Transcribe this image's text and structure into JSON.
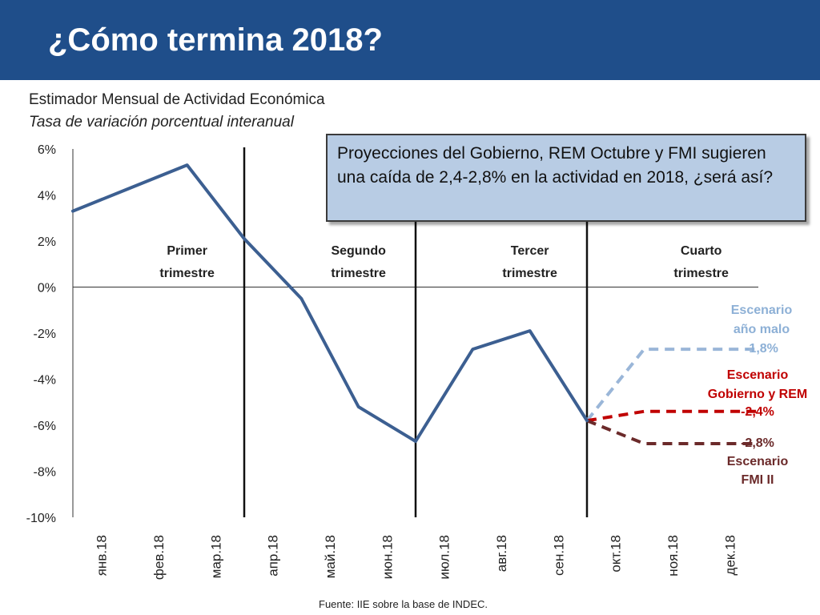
{
  "header": {
    "title": "¿Cómo termina 2018?"
  },
  "subtitle": {
    "line1": "Estimador Mensual de Actividad Económica",
    "line2": "Tasa de variación porcentual interanual"
  },
  "callout": {
    "text": "Proyecciones del Gobierno, REM Octubre y FMI sugieren una caída de 2,4-2,8% en la actividad en 2018, ¿será así?"
  },
  "source": "Fuente: IIE sobre la base de INDEC.",
  "colors": {
    "header_bg": "#1f4e8a",
    "main_line": "#3c5f91",
    "scenario_bad_year": "#9ab6d8",
    "scenario_gobierno_rem": "#c00000",
    "scenario_fmi": "#6b2a2a",
    "callout_bg": "#b8cce4"
  },
  "chart_data": {
    "type": "line",
    "categories": [
      "янв.18",
      "фев.18",
      "мар.18",
      "апр.18",
      "май.18",
      "июн.18",
      "юл.18",
      "авг.18",
      "сен.18",
      "окт.18",
      "ноя.18",
      "дек.18"
    ],
    "x_tick_labels": [
      "янв.18",
      "фев.18",
      "мар.18",
      "апр.18",
      "май.18",
      "июн.18",
      "июл.18",
      "авг.18",
      "сен.18",
      "окт.18",
      "ноя.18",
      "дек.18"
    ],
    "y_tick_labels": [
      "6%",
      "4%",
      "2%",
      "0%",
      "-2%",
      "-4%",
      "-6%",
      "-8%",
      "-10%"
    ],
    "ylim": [
      -10,
      6
    ],
    "grid": false,
    "series": [
      {
        "key": "actual",
        "style": "solid",
        "points": [
          {
            "x": -0.5,
            "y": 3.3
          },
          {
            "x": 0.5,
            "y": 4.3
          },
          {
            "x": 1.5,
            "y": 5.3
          },
          {
            "x": 2.5,
            "y": 2.1
          },
          {
            "x": 3.5,
            "y": -0.5
          },
          {
            "x": 4.5,
            "y": -5.2
          },
          {
            "x": 5.5,
            "y": -6.7
          },
          {
            "x": 6.5,
            "y": -2.7
          },
          {
            "x": 7.5,
            "y": -1.9
          },
          {
            "x": 8.5,
            "y": -5.8
          }
        ]
      },
      {
        "key": "bad_year",
        "style": "dashed",
        "points": [
          {
            "x": 8.5,
            "y": -5.8
          },
          {
            "x": 9.5,
            "y": -2.7
          },
          {
            "x": 11.5,
            "y": -2.7
          }
        ]
      },
      {
        "key": "gobierno_rem",
        "style": "dashed",
        "points": [
          {
            "x": 8.5,
            "y": -5.8
          },
          {
            "x": 9.5,
            "y": -5.4
          },
          {
            "x": 11.5,
            "y": -5.4
          }
        ]
      },
      {
        "key": "fmi",
        "style": "dashed",
        "points": [
          {
            "x": 8.5,
            "y": -5.8
          },
          {
            "x": 9.5,
            "y": -6.8
          },
          {
            "x": 11.5,
            "y": -6.8
          }
        ]
      }
    ],
    "quarter_dividers_x": [
      3,
      6,
      9
    ],
    "quarter_labels": [
      {
        "line1": "Primer",
        "line2": "trimestre",
        "x": 1.5
      },
      {
        "line1": "Segundo",
        "line2": "trimestre",
        "x": 4.5
      },
      {
        "line1": "Tercer",
        "line2": "trimestre",
        "x": 7.5
      },
      {
        "line1": "Cuarto",
        "line2": "trimestre",
        "x": 10.5
      }
    ],
    "scenario_labels": [
      {
        "key": "bad_year",
        "lines": [
          "Escenario",
          "año malo",
          "-1,8%"
        ]
      },
      {
        "key": "gobierno_rem",
        "lines": [
          "Escenario",
          "Gobierno y REM",
          "-2,4%"
        ]
      },
      {
        "key": "fmi",
        "lines": [
          "-2,8%",
          "Escenario",
          "FMI II"
        ]
      }
    ]
  }
}
